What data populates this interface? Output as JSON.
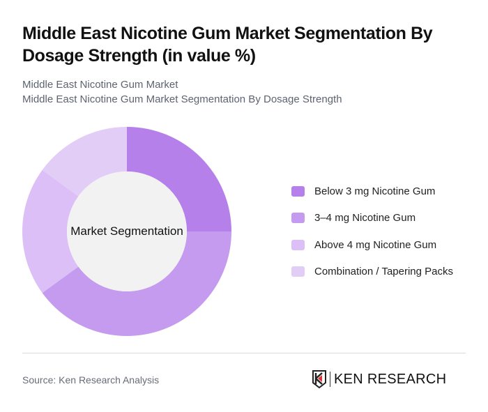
{
  "header": {
    "title": "Middle East Nicotine Gum Market Segmentation By Dosage Strength (in value %)",
    "subtitle_1": "Middle East Nicotine Gum Market",
    "subtitle_2": "Middle East Nicotine Gum Market Segmentation By Dosage Strength"
  },
  "chart": {
    "center_label": "Market Segmentation"
  },
  "legend": {
    "items": [
      {
        "label": "Below 3 mg Nicotine Gum",
        "color": "#b580ea"
      },
      {
        "label": "3–4 mg Nicotine Gum",
        "color": "#c49bee"
      },
      {
        "label": "Above 4 mg Nicotine Gum",
        "color": "#dbbff6"
      },
      {
        "label": "Combination / Tapering Packs",
        "color": "#e2cdf7"
      }
    ]
  },
  "footer": {
    "source": "Source: Ken Research Analysis",
    "logo_text": "KEN RESEARCH"
  },
  "chart_data": {
    "type": "pie",
    "title": "Middle East Nicotine Gum Market Segmentation By Dosage Strength (in value %)",
    "subtitle": "Middle East Nicotine Gum Market Segmentation By Dosage Strength",
    "categories": [
      "Below 3 mg Nicotine Gum",
      "3–4 mg Nicotine Gum",
      "Above 4 mg Nicotine Gum",
      "Combination / Tapering Packs"
    ],
    "values": [
      25,
      40,
      20,
      15
    ],
    "colors": [
      "#b580ea",
      "#c49bee",
      "#dbbff6",
      "#e2cdf7"
    ],
    "donut": true,
    "center_label": "Market Segmentation",
    "legend_position": "right",
    "unit": "%"
  }
}
